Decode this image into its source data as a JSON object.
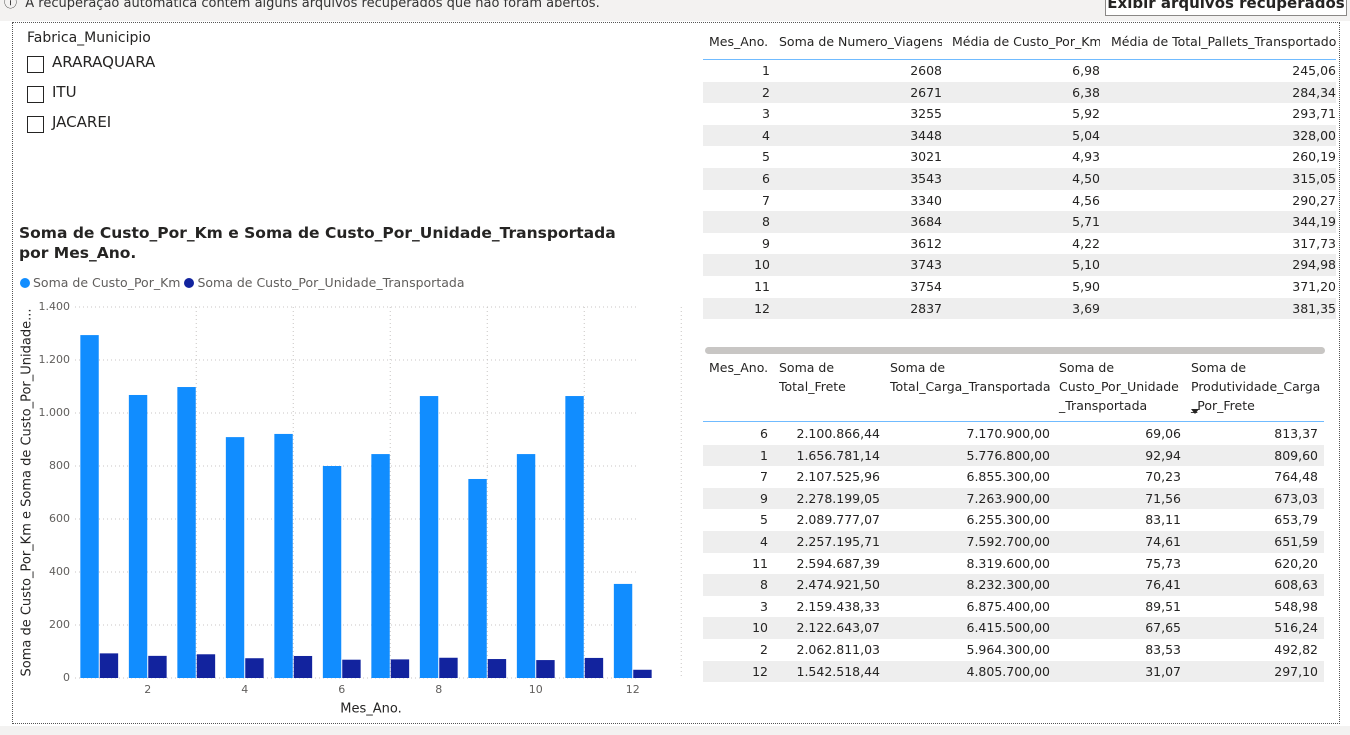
{
  "banner": {
    "message": "A recuperação automática contém alguns arquivos recuperados que não foram abertos.",
    "button": "Exibir arquivos recuperados"
  },
  "slicer": {
    "title": "Fabrica_Municipio",
    "items": [
      "ARARAQUARA",
      "ITU",
      "JACAREI"
    ]
  },
  "chart_data": {
    "type": "bar",
    "title": "Soma de Custo_Por_Km e Soma de Custo_Por_Unidade_Transportada por Mes_Ano.",
    "x_label": "Mes_Ano.",
    "y_label": "Soma de Custo_Por_Km e Soma de Custo_Por_Unidade...",
    "x": [
      1,
      2,
      3,
      4,
      5,
      6,
      7,
      8,
      9,
      10,
      11,
      12
    ],
    "xlim": [
      0.5,
      12.5
    ],
    "xticks": [
      2,
      4,
      6,
      8,
      10,
      12
    ],
    "ylim": [
      0,
      1400
    ],
    "yticks": [
      0,
      200,
      400,
      600,
      800,
      {
        "value": 1000,
        "label": "1.000"
      },
      {
        "value": 1200,
        "label": "1.200"
      },
      {
        "value": 1400,
        "label": "1.400"
      }
    ],
    "grid": true,
    "legend": "top-left",
    "series": [
      {
        "name": "Soma de Custo_Por_Km",
        "color": "#118dff",
        "values": [
          1294,
          1068,
          1098,
          909,
          921,
          800,
          845,
          1064,
          751,
          845,
          1064,
          355
        ]
      },
      {
        "name": "Soma de Custo_Por_Unidade_Transportada",
        "color": "#12239e",
        "values": [
          92.94,
          83.53,
          89.51,
          74.61,
          83.11,
          69.06,
          70.23,
          76.41,
          71.56,
          67.65,
          75.73,
          31.07
        ]
      }
    ]
  },
  "table_top": {
    "columns": [
      "Mes_Ano.",
      "Soma de Numero_Viagens",
      "Média de Custo_Por_Km",
      "Média de Total_Pallets_Transportados"
    ],
    "rows": [
      [
        "1",
        "2608",
        "6,98",
        "245,06"
      ],
      [
        "2",
        "2671",
        "6,38",
        "284,34"
      ],
      [
        "3",
        "3255",
        "5,92",
        "293,71"
      ],
      [
        "4",
        "3448",
        "5,04",
        "328,00"
      ],
      [
        "5",
        "3021",
        "4,93",
        "260,19"
      ],
      [
        "6",
        "3543",
        "4,50",
        "315,05"
      ],
      [
        "7",
        "3340",
        "4,56",
        "290,27"
      ],
      [
        "8",
        "3684",
        "5,71",
        "344,19"
      ],
      [
        "9",
        "3612",
        "4,22",
        "317,73"
      ],
      [
        "10",
        "3743",
        "5,10",
        "294,98"
      ],
      [
        "11",
        "3754",
        "5,90",
        "371,20"
      ],
      [
        "12",
        "2837",
        "3,69",
        "381,35"
      ]
    ]
  },
  "table_bottom": {
    "columns": [
      "Mes_Ano.",
      "Soma de Total_Frete",
      "Soma de Total_Carga_Transportada",
      "Soma de Custo_Por_Unidade_Transportada",
      "Soma de Produtividade_Carga_Por_Frete"
    ],
    "rows": [
      [
        "6",
        "2.100.866,44",
        "7.170.900,00",
        "69,06",
        "813,37"
      ],
      [
        "1",
        "1.656.781,14",
        "5.776.800,00",
        "92,94",
        "809,60"
      ],
      [
        "7",
        "2.107.525,96",
        "6.855.300,00",
        "70,23",
        "764,48"
      ],
      [
        "9",
        "2.278.199,05",
        "7.263.900,00",
        "71,56",
        "673,03"
      ],
      [
        "5",
        "2.089.777,07",
        "6.255.300,00",
        "83,11",
        "653,79"
      ],
      [
        "4",
        "2.257.195,71",
        "7.592.700,00",
        "74,61",
        "651,59"
      ],
      [
        "11",
        "2.594.687,39",
        "8.319.600,00",
        "75,73",
        "620,20"
      ],
      [
        "8",
        "2.474.921,50",
        "8.232.300,00",
        "76,41",
        "608,63"
      ],
      [
        "3",
        "2.159.438,33",
        "6.875.400,00",
        "89,51",
        "548,98"
      ],
      [
        "10",
        "2.122.643,07",
        "6.415.500,00",
        "67,65",
        "516,24"
      ],
      [
        "2",
        "2.062.811,03",
        "5.964.300,00",
        "83,53",
        "492,82"
      ],
      [
        "12",
        "1.542.518,44",
        "4.805.700,00",
        "31,07",
        "297,10"
      ]
    ]
  }
}
